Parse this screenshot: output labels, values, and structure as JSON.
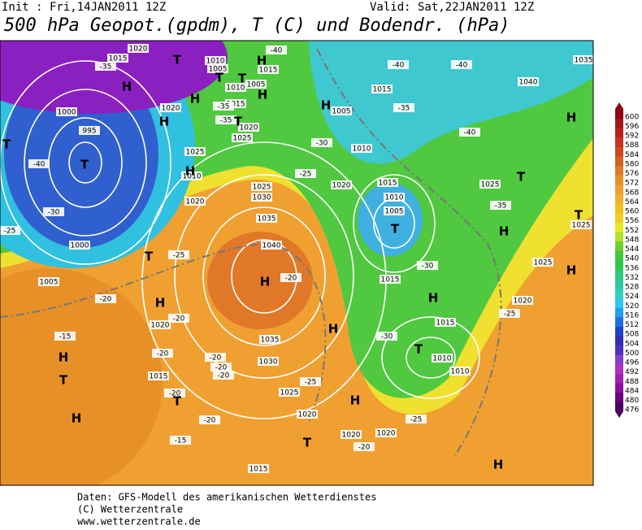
{
  "header": {
    "init": "Init : Fri,14JAN2011 12Z",
    "valid": "Valid: Sat,22JAN2011 12Z",
    "title": "500 hPa Geopot.(gpdm), T (C) und Bodendr. (hPa)"
  },
  "scale": {
    "values": [
      476,
      480,
      484,
      488,
      492,
      496,
      500,
      504,
      508,
      512,
      516,
      520,
      524,
      528,
      532,
      536,
      540,
      544,
      548,
      552,
      556,
      560,
      564,
      568,
      572,
      576,
      580,
      584,
      588,
      592,
      596,
      600
    ],
    "colors": [
      "#4a0060",
      "#6a0080",
      "#8a10a0",
      "#a020b0",
      "#b030c0",
      "#8040c8",
      "#5030c0",
      "#3030b0",
      "#2040c8",
      "#2070e0",
      "#20a0f0",
      "#30c8f0",
      "#30d0c0",
      "#30c8a0",
      "#30c880",
      "#30c850",
      "#40c840",
      "#70d030",
      "#b0e030",
      "#e8e820",
      "#f0d020",
      "#f0c020",
      "#f0b030",
      "#f0a030",
      "#e89028",
      "#e07828",
      "#d86020",
      "#d04820",
      "#c83020",
      "#b82020",
      "#a01818",
      "#900010"
    ]
  },
  "labels": {
    "pressure": [
      "1015",
      "1010",
      "1005",
      "1015",
      "1005",
      "1010",
      "1015",
      "1020",
      "1000",
      "995",
      "1020",
      "1025",
      "1025",
      "1010",
      "1020",
      "1030",
      "1025",
      "1035",
      "1040",
      "1005",
      "1010",
      "1020",
      "1015",
      "1010",
      "1005",
      "1015",
      "1040",
      "1025",
      "1025",
      "1020",
      "1015",
      "1010",
      "1010",
      "1035",
      "1030",
      "1025",
      "1020",
      "1020",
      "1020",
      "1015",
      "1015",
      "1020",
      "1000",
      "1005",
      "1015",
      "1035",
      "1020",
      "1025"
    ],
    "temperature": [
      "-40",
      "-40",
      "-40",
      "-40",
      "-35",
      "-35",
      "-35",
      "-35",
      "-30",
      "-25",
      "-35",
      "-30",
      "-25",
      "-20",
      "-25",
      "-20",
      "-20",
      "-15",
      "-20",
      "-20",
      "-20",
      "-20",
      "-20",
      "-20",
      "-15",
      "-25",
      "-25",
      "-20",
      "-30",
      "-25",
      "-30",
      "-40"
    ],
    "centers": [
      "H",
      "T",
      "H",
      "H",
      "T",
      "T",
      "H",
      "H",
      "T",
      "H",
      "T",
      "T",
      "H",
      "T",
      "H",
      "H",
      "T",
      "T",
      "H",
      "T",
      "H",
      "H",
      "H",
      "T",
      "H",
      "T",
      "T",
      "H",
      "H",
      "T",
      "H",
      "H"
    ]
  },
  "footer": [
    "Daten: GFS-Modell des amerikanischen Wetterdienstes",
    "(C) Wetterzentrale",
    "www.wetterzentrale.de"
  ]
}
